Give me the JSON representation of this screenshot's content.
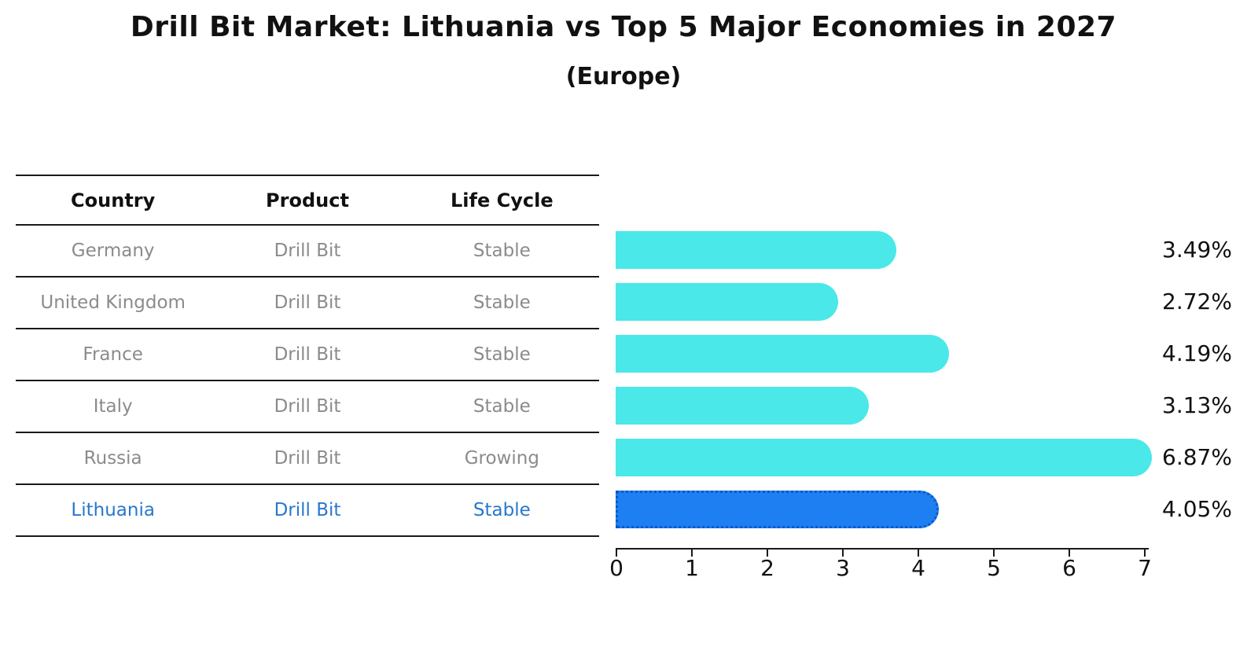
{
  "chart": {
    "title": "Drill Bit Market: Lithuania vs Top 5 Major Economies in 2027",
    "subtitle": "(Europe)"
  },
  "table": {
    "headers": [
      "Country",
      "Product",
      "Life Cycle"
    ],
    "rows": [
      {
        "country": "Germany",
        "product": "Drill Bit",
        "life_cycle": "Stable",
        "highlight": false
      },
      {
        "country": "United Kingdom",
        "product": "Drill Bit",
        "life_cycle": "Stable",
        "highlight": false
      },
      {
        "country": "France",
        "product": "Drill Bit",
        "life_cycle": "Stable",
        "highlight": false
      },
      {
        "country": "Italy",
        "product": "Drill Bit",
        "life_cycle": "Stable",
        "highlight": false
      },
      {
        "country": "Russia",
        "product": "Drill Bit",
        "life_cycle": "Growing",
        "highlight": false
      },
      {
        "country": "Lithuania",
        "product": "Drill Bit",
        "life_cycle": "Stable",
        "highlight": true
      }
    ],
    "text_color": "#8B8B8B",
    "highlight_text_color": "#2878CC"
  },
  "chart_data": {
    "type": "bar",
    "orientation": "horizontal",
    "title": "Drill Bit Market: Lithuania vs Top 5 Major Economies in 2027",
    "subtitle": "(Europe)",
    "categories": [
      "Germany",
      "United Kingdom",
      "France",
      "Italy",
      "Russia",
      "Lithuania"
    ],
    "values": [
      3.49,
      2.72,
      4.19,
      3.13,
      6.87,
      4.05
    ],
    "value_labels": [
      "3.49%",
      "2.72%",
      "4.19%",
      "3.13%",
      "6.87%",
      "4.05%"
    ],
    "highlight_index": 5,
    "x_ticks": [
      "0",
      "1",
      "2",
      "3",
      "4",
      "5",
      "6",
      "7"
    ],
    "xlim": [
      0,
      7
    ],
    "bar_color": "#4AE8E8",
    "highlight_bar_color": "#1E7FF2",
    "highlight_border_color": "#0D5AC4",
    "grid": false,
    "legend": false,
    "xlabel": "",
    "ylabel": ""
  }
}
